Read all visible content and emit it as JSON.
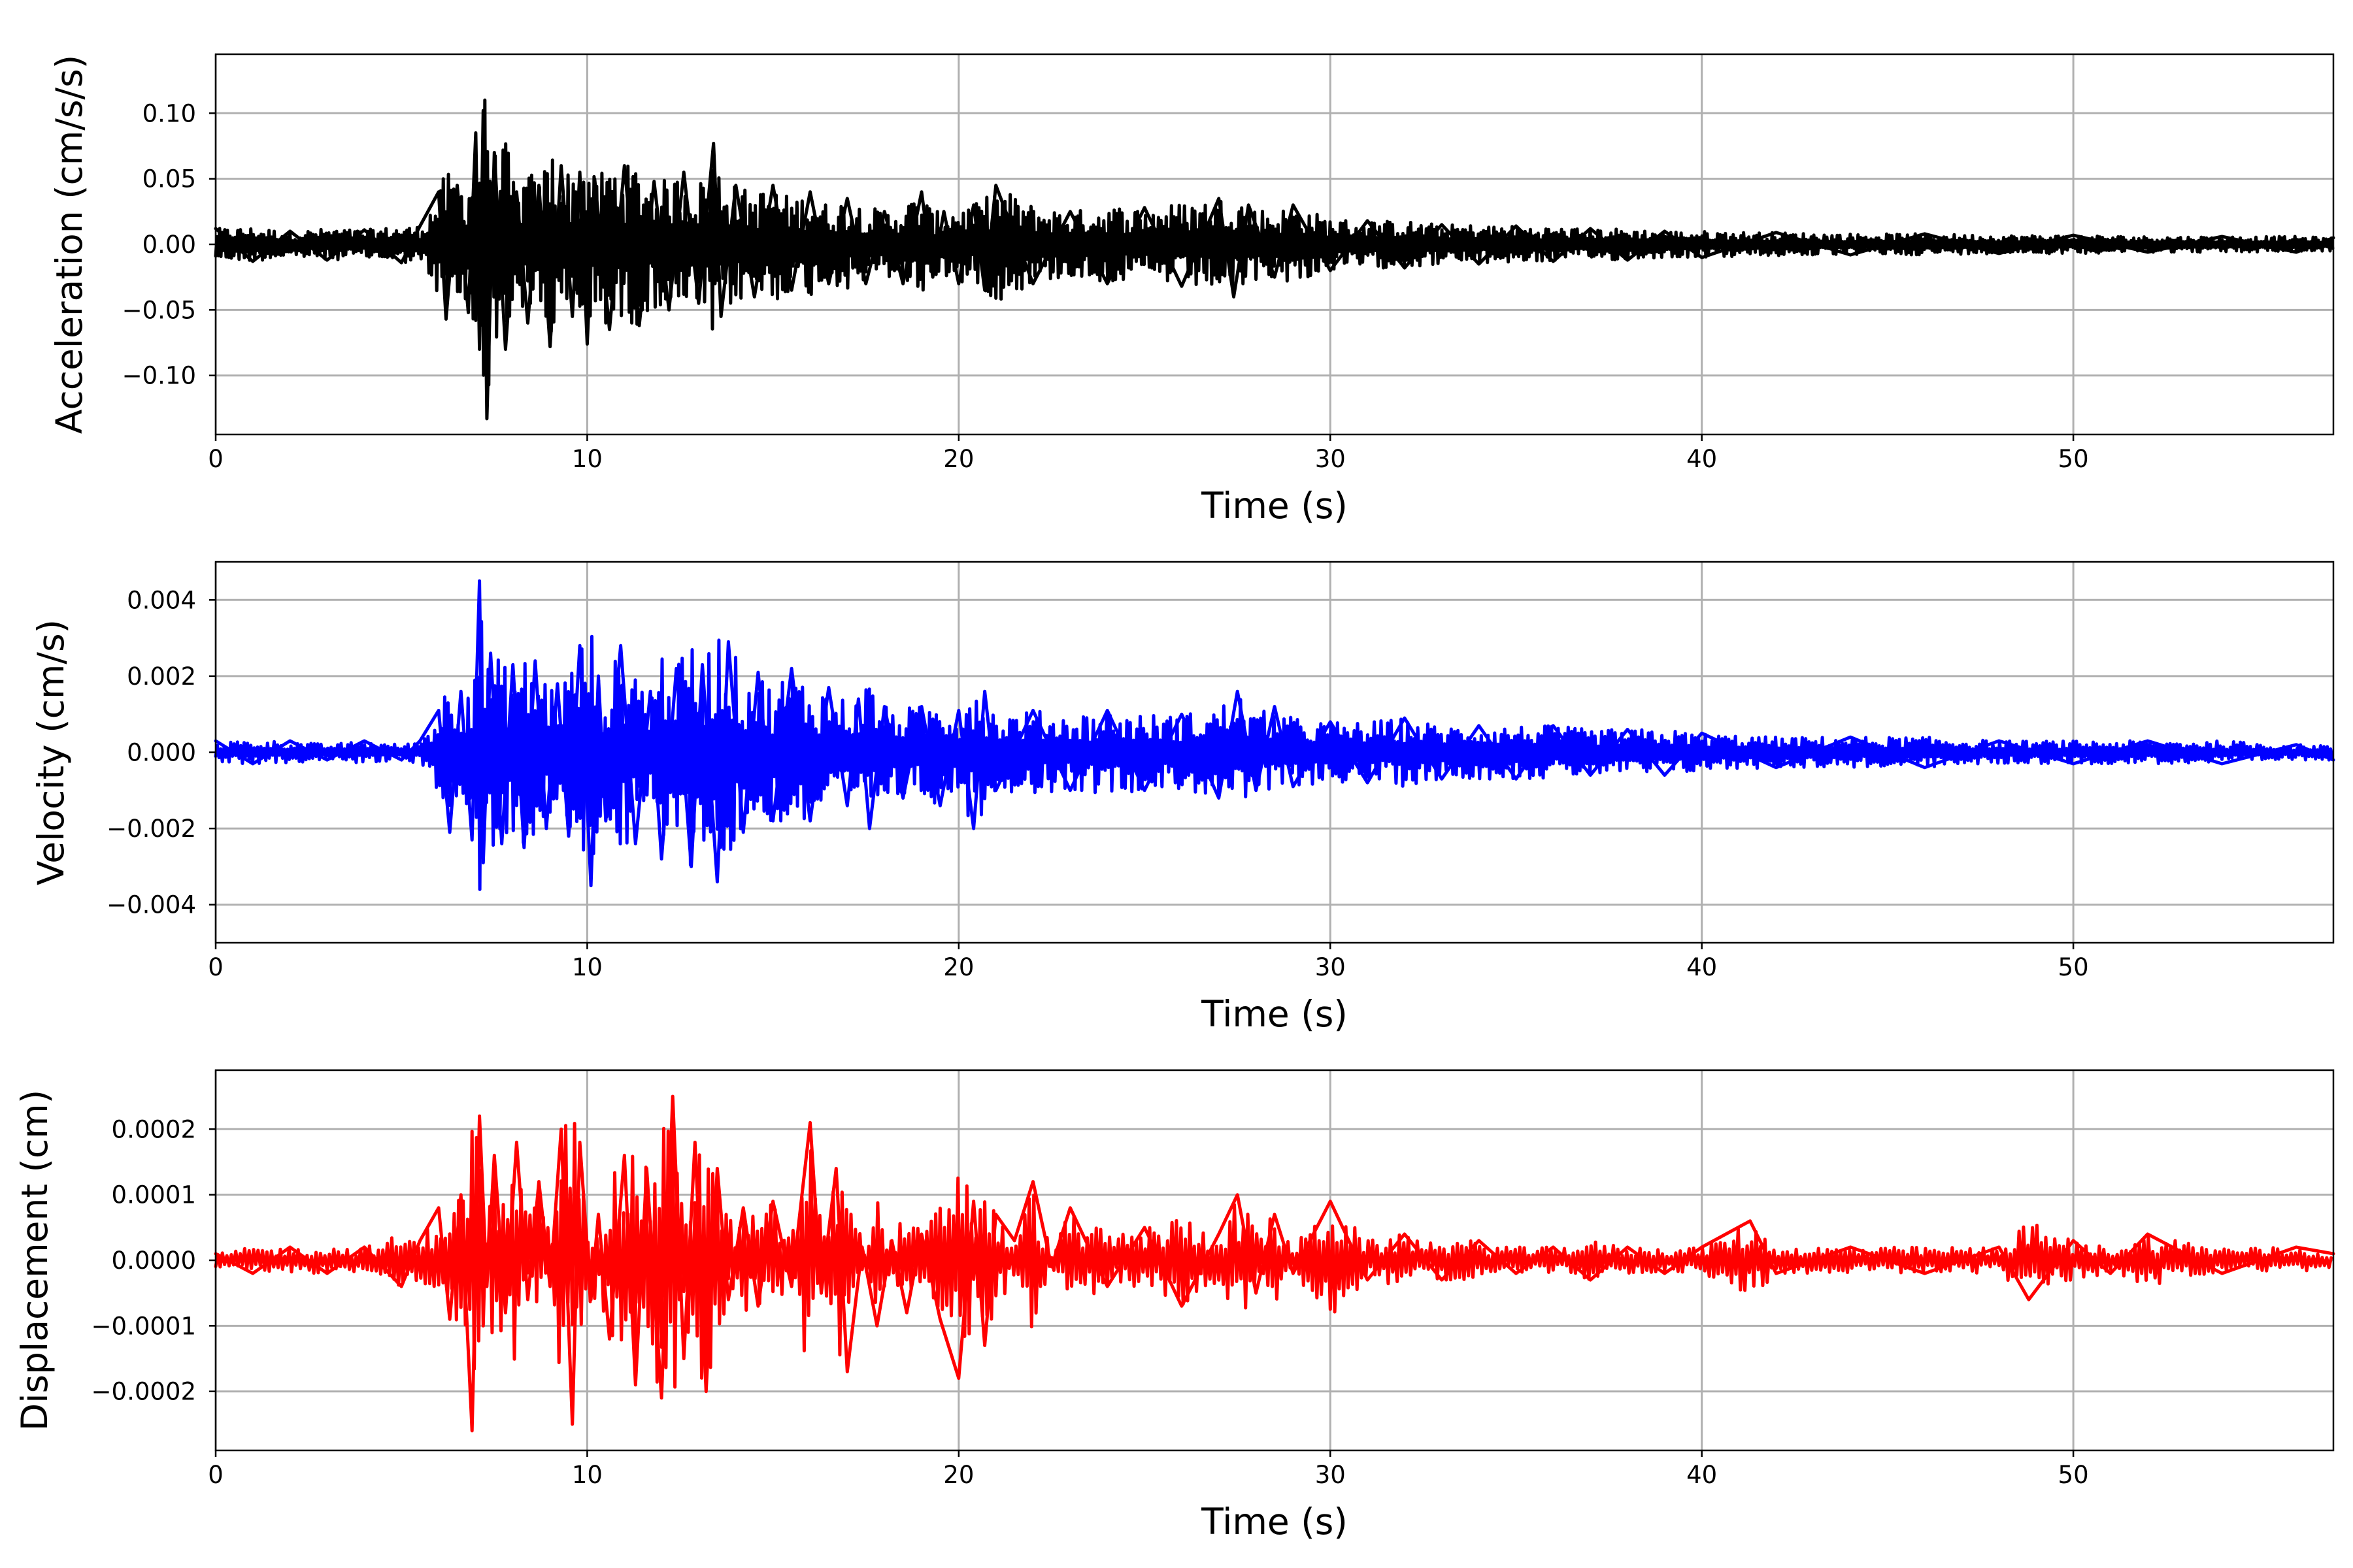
{
  "chart_data": [
    {
      "type": "line",
      "xlabel": "Time (s)",
      "ylabel": "Acceleration (cm/s/s)",
      "xlim": [
        0,
        57
      ],
      "ylim": [
        -0.145,
        0.145
      ],
      "xticks": [
        0,
        10,
        20,
        30,
        40,
        50
      ],
      "xtick_labels": [
        "0",
        "10",
        "20",
        "30",
        "40",
        "50"
      ],
      "yticks": [
        -0.1,
        -0.05,
        0.0,
        0.05,
        0.1
      ],
      "ytick_labels": [
        "−0.10",
        "−0.05",
        "0.00",
        "0.05",
        "0.10"
      ],
      "grid": true,
      "color": "#000000",
      "series": [
        {
          "x": [
            0,
            1,
            2,
            3,
            4,
            5,
            5.5,
            6,
            6.2,
            6.5,
            6.8,
            7.0,
            7.1,
            7.2,
            7.3,
            7.5,
            7.8,
            8.1,
            8.4,
            8.7,
            9.0,
            9.3,
            9.6,
            9.8,
            10.0,
            10.2,
            10.6,
            11.0,
            11.4,
            11.8,
            12.2,
            12.6,
            13.0,
            13.4,
            13.6,
            14.0,
            14.5,
            15.0,
            15.5,
            16.0,
            16.5,
            17.0,
            17.5,
            18.0,
            18.5,
            19.0,
            19.3,
            19.6,
            20.0,
            20.4,
            20.7,
            21.0,
            22.0,
            23.0,
            24.0,
            25.0,
            26.0,
            27.0,
            27.4,
            27.8,
            28.5,
            29.0,
            30.0,
            31.0,
            32.0,
            33.0,
            34.0,
            35.0,
            36.0,
            37.0,
            38.0,
            39.0,
            40.0,
            42.0,
            44.0,
            46.0,
            48.0,
            50.0,
            52.0,
            54.0,
            56.0,
            57.0
          ],
          "y": [
            0.012,
            -0.013,
            0.01,
            -0.012,
            0.011,
            -0.014,
            0.014,
            0.04,
            -0.057,
            0.045,
            -0.052,
            0.085,
            -0.08,
            0.102,
            -0.133,
            0.07,
            -0.08,
            0.04,
            -0.06,
            0.045,
            -0.078,
            0.06,
            -0.055,
            0.055,
            -0.076,
            0.05,
            -0.065,
            0.06,
            -0.062,
            0.048,
            -0.05,
            0.055,
            -0.045,
            0.077,
            -0.055,
            0.045,
            -0.04,
            0.045,
            -0.035,
            0.04,
            -0.03,
            0.035,
            -0.03,
            0.025,
            -0.03,
            0.04,
            -0.025,
            0.025,
            -0.03,
            0.03,
            -0.035,
            0.045,
            -0.03,
            0.025,
            -0.03,
            0.028,
            -0.032,
            0.035,
            -0.04,
            0.03,
            -0.025,
            0.03,
            -0.02,
            0.018,
            -0.018,
            0.015,
            -0.015,
            0.014,
            -0.013,
            0.012,
            -0.012,
            0.01,
            -0.01,
            0.009,
            -0.008,
            0.008,
            -0.007,
            0.007,
            -0.006,
            0.006,
            -0.006,
            0.005
          ]
        }
      ]
    },
    {
      "type": "line",
      "xlabel": "Time (s)",
      "ylabel": "Velocity (cm/s)",
      "xlim": [
        0,
        57
      ],
      "ylim": [
        -0.005,
        0.005
      ],
      "xticks": [
        0,
        10,
        20,
        30,
        40,
        50
      ],
      "xtick_labels": [
        "0",
        "10",
        "20",
        "30",
        "40",
        "50"
      ],
      "yticks": [
        -0.004,
        -0.002,
        0.0,
        0.002,
        0.004
      ],
      "ytick_labels": [
        "−0.004",
        "−0.002",
        "0.000",
        "0.002",
        "0.004"
      ],
      "grid": true,
      "color": "#0000ff",
      "series": [
        {
          "x": [
            0,
            1,
            2,
            3,
            4,
            5,
            5.5,
            6.0,
            6.3,
            6.6,
            6.9,
            7.1,
            7.2,
            7.4,
            7.7,
            8.0,
            8.3,
            8.6,
            8.9,
            9.2,
            9.5,
            9.8,
            10.1,
            10.3,
            10.5,
            10.9,
            11.3,
            11.7,
            12.0,
            12.4,
            12.8,
            13.1,
            13.5,
            13.8,
            14.2,
            14.6,
            15.0,
            15.5,
            16.0,
            16.5,
            17.0,
            17.3,
            17.6,
            18.0,
            18.5,
            19.0,
            19.5,
            20.0,
            20.4,
            20.7,
            21.0,
            22.0,
            23.0,
            24.0,
            25.0,
            26.0,
            27.0,
            27.5,
            28.0,
            28.5,
            29.0,
            30.0,
            31.0,
            32.0,
            33.0,
            34.0,
            35.0,
            36.0,
            37.0,
            38.0,
            39.0,
            40.0,
            42.0,
            44.0,
            46.0,
            48.0,
            50.0,
            52.0,
            54.0,
            56.0,
            57.0
          ],
          "y": [
            0.0003,
            -0.0003,
            0.0003,
            -0.0002,
            0.0003,
            -0.0002,
            0.0003,
            0.0011,
            -0.0021,
            0.0016,
            -0.0023,
            0.0045,
            -0.0029,
            0.0026,
            -0.0024,
            0.0023,
            -0.0025,
            0.0024,
            -0.002,
            0.0018,
            -0.0022,
            0.0028,
            -0.0035,
            0.002,
            -0.0018,
            0.0028,
            -0.0024,
            0.0016,
            -0.0028,
            0.0022,
            -0.003,
            0.0023,
            -0.0034,
            0.0029,
            -0.0021,
            0.0021,
            -0.0018,
            0.0022,
            -0.0018,
            0.0017,
            -0.0014,
            0.0014,
            -0.002,
            0.0012,
            -0.0012,
            0.0012,
            -0.0014,
            0.0011,
            -0.002,
            0.0016,
            -0.001,
            0.0011,
            -0.001,
            0.0011,
            -0.001,
            0.001,
            -0.0012,
            0.0016,
            -0.001,
            0.0012,
            -0.0009,
            0.0008,
            -0.0008,
            0.0009,
            -0.0007,
            0.0007,
            -0.0007,
            0.0007,
            -0.0006,
            0.0006,
            -0.0006,
            0.0005,
            -0.0004,
            0.0004,
            -0.0004,
            0.0003,
            -0.0003,
            0.0003,
            -0.0003,
            0.0002,
            -0.0002
          ]
        }
      ]
    },
    {
      "type": "line",
      "xlabel": "Time (s)",
      "ylabel": "Displacement (cm)",
      "xlim": [
        0,
        57
      ],
      "ylim": [
        -0.00029,
        0.00029
      ],
      "xticks": [
        0,
        10,
        20,
        30,
        40,
        50
      ],
      "xtick_labels": [
        "0",
        "10",
        "20",
        "30",
        "40",
        "50"
      ],
      "yticks": [
        -0.0002,
        -0.0001,
        0.0,
        0.0001,
        0.0002
      ],
      "ytick_labels": [
        "−0.0002",
        "−0.0001",
        "0.0000",
        "0.0001",
        "0.0002"
      ],
      "grid": true,
      "color": "#ff0000",
      "series": [
        {
          "x": [
            0,
            1,
            2,
            3,
            4,
            5,
            5.5,
            6.0,
            6.3,
            6.6,
            6.9,
            7.1,
            7.3,
            7.5,
            7.8,
            8.1,
            8.4,
            8.7,
            9.0,
            9.3,
            9.6,
            9.8,
            10.1,
            10.3,
            10.6,
            11.0,
            11.3,
            11.6,
            12.0,
            12.3,
            12.6,
            12.9,
            13.2,
            13.5,
            13.8,
            14.2,
            14.6,
            15.0,
            15.5,
            16.0,
            16.3,
            16.7,
            17.0,
            17.4,
            17.8,
            18.2,
            18.6,
            19.0,
            19.5,
            20.0,
            20.4,
            20.7,
            21.0,
            21.5,
            22.0,
            22.5,
            23.0,
            24.0,
            25.0,
            26.0,
            27.0,
            27.5,
            28.0,
            28.5,
            29.0,
            30.0,
            31.0,
            32.0,
            33.0,
            34.0,
            35.0,
            36.0,
            37.0,
            38.0,
            39.0,
            40.0,
            41.3,
            42.0,
            44.0,
            46.0,
            48.0,
            48.8,
            50.0,
            51.0,
            52.0,
            54.0,
            56.0,
            57.0
          ],
          "y": [
            1e-05,
            -2e-05,
            2e-05,
            -2e-05,
            2e-05,
            -4e-05,
            3e-05,
            8e-05,
            -9e-05,
            0.0001,
            -0.00026,
            0.00022,
            -4e-05,
            0.00016,
            -8e-05,
            0.00018,
            -6e-05,
            0.00012,
            -4e-05,
            0.0002,
            -0.00025,
            0.00018,
            -6e-05,
            7e-05,
            -0.00012,
            0.00016,
            -0.00019,
            0.00014,
            -0.00021,
            0.00025,
            -0.00015,
            0.00018,
            -0.0002,
            0.00014,
            -6e-05,
            8e-05,
            -7e-05,
            9e-05,
            -4e-05,
            0.00021,
            -5e-05,
            0.00014,
            -0.00017,
            2e-05,
            -0.0001,
            3e-05,
            -8e-05,
            4e-05,
            -9e-05,
            -0.00018,
            9e-05,
            -0.00013,
            7e-05,
            3e-05,
            0.00012,
            -1e-05,
            8e-05,
            -4e-05,
            5e-05,
            -7e-05,
            4e-05,
            0.0001,
            -5e-05,
            7e-05,
            -2e-05,
            9e-05,
            -3e-05,
            4e-05,
            -3e-05,
            3e-05,
            -2e-05,
            2e-05,
            -3e-05,
            2e-05,
            -2e-05,
            2e-05,
            6e-05,
            -2e-05,
            2e-05,
            -2e-05,
            2e-05,
            -6e-05,
            3e-05,
            -2e-05,
            4e-05,
            -2e-05,
            2e-05,
            1e-05
          ]
        }
      ]
    }
  ]
}
